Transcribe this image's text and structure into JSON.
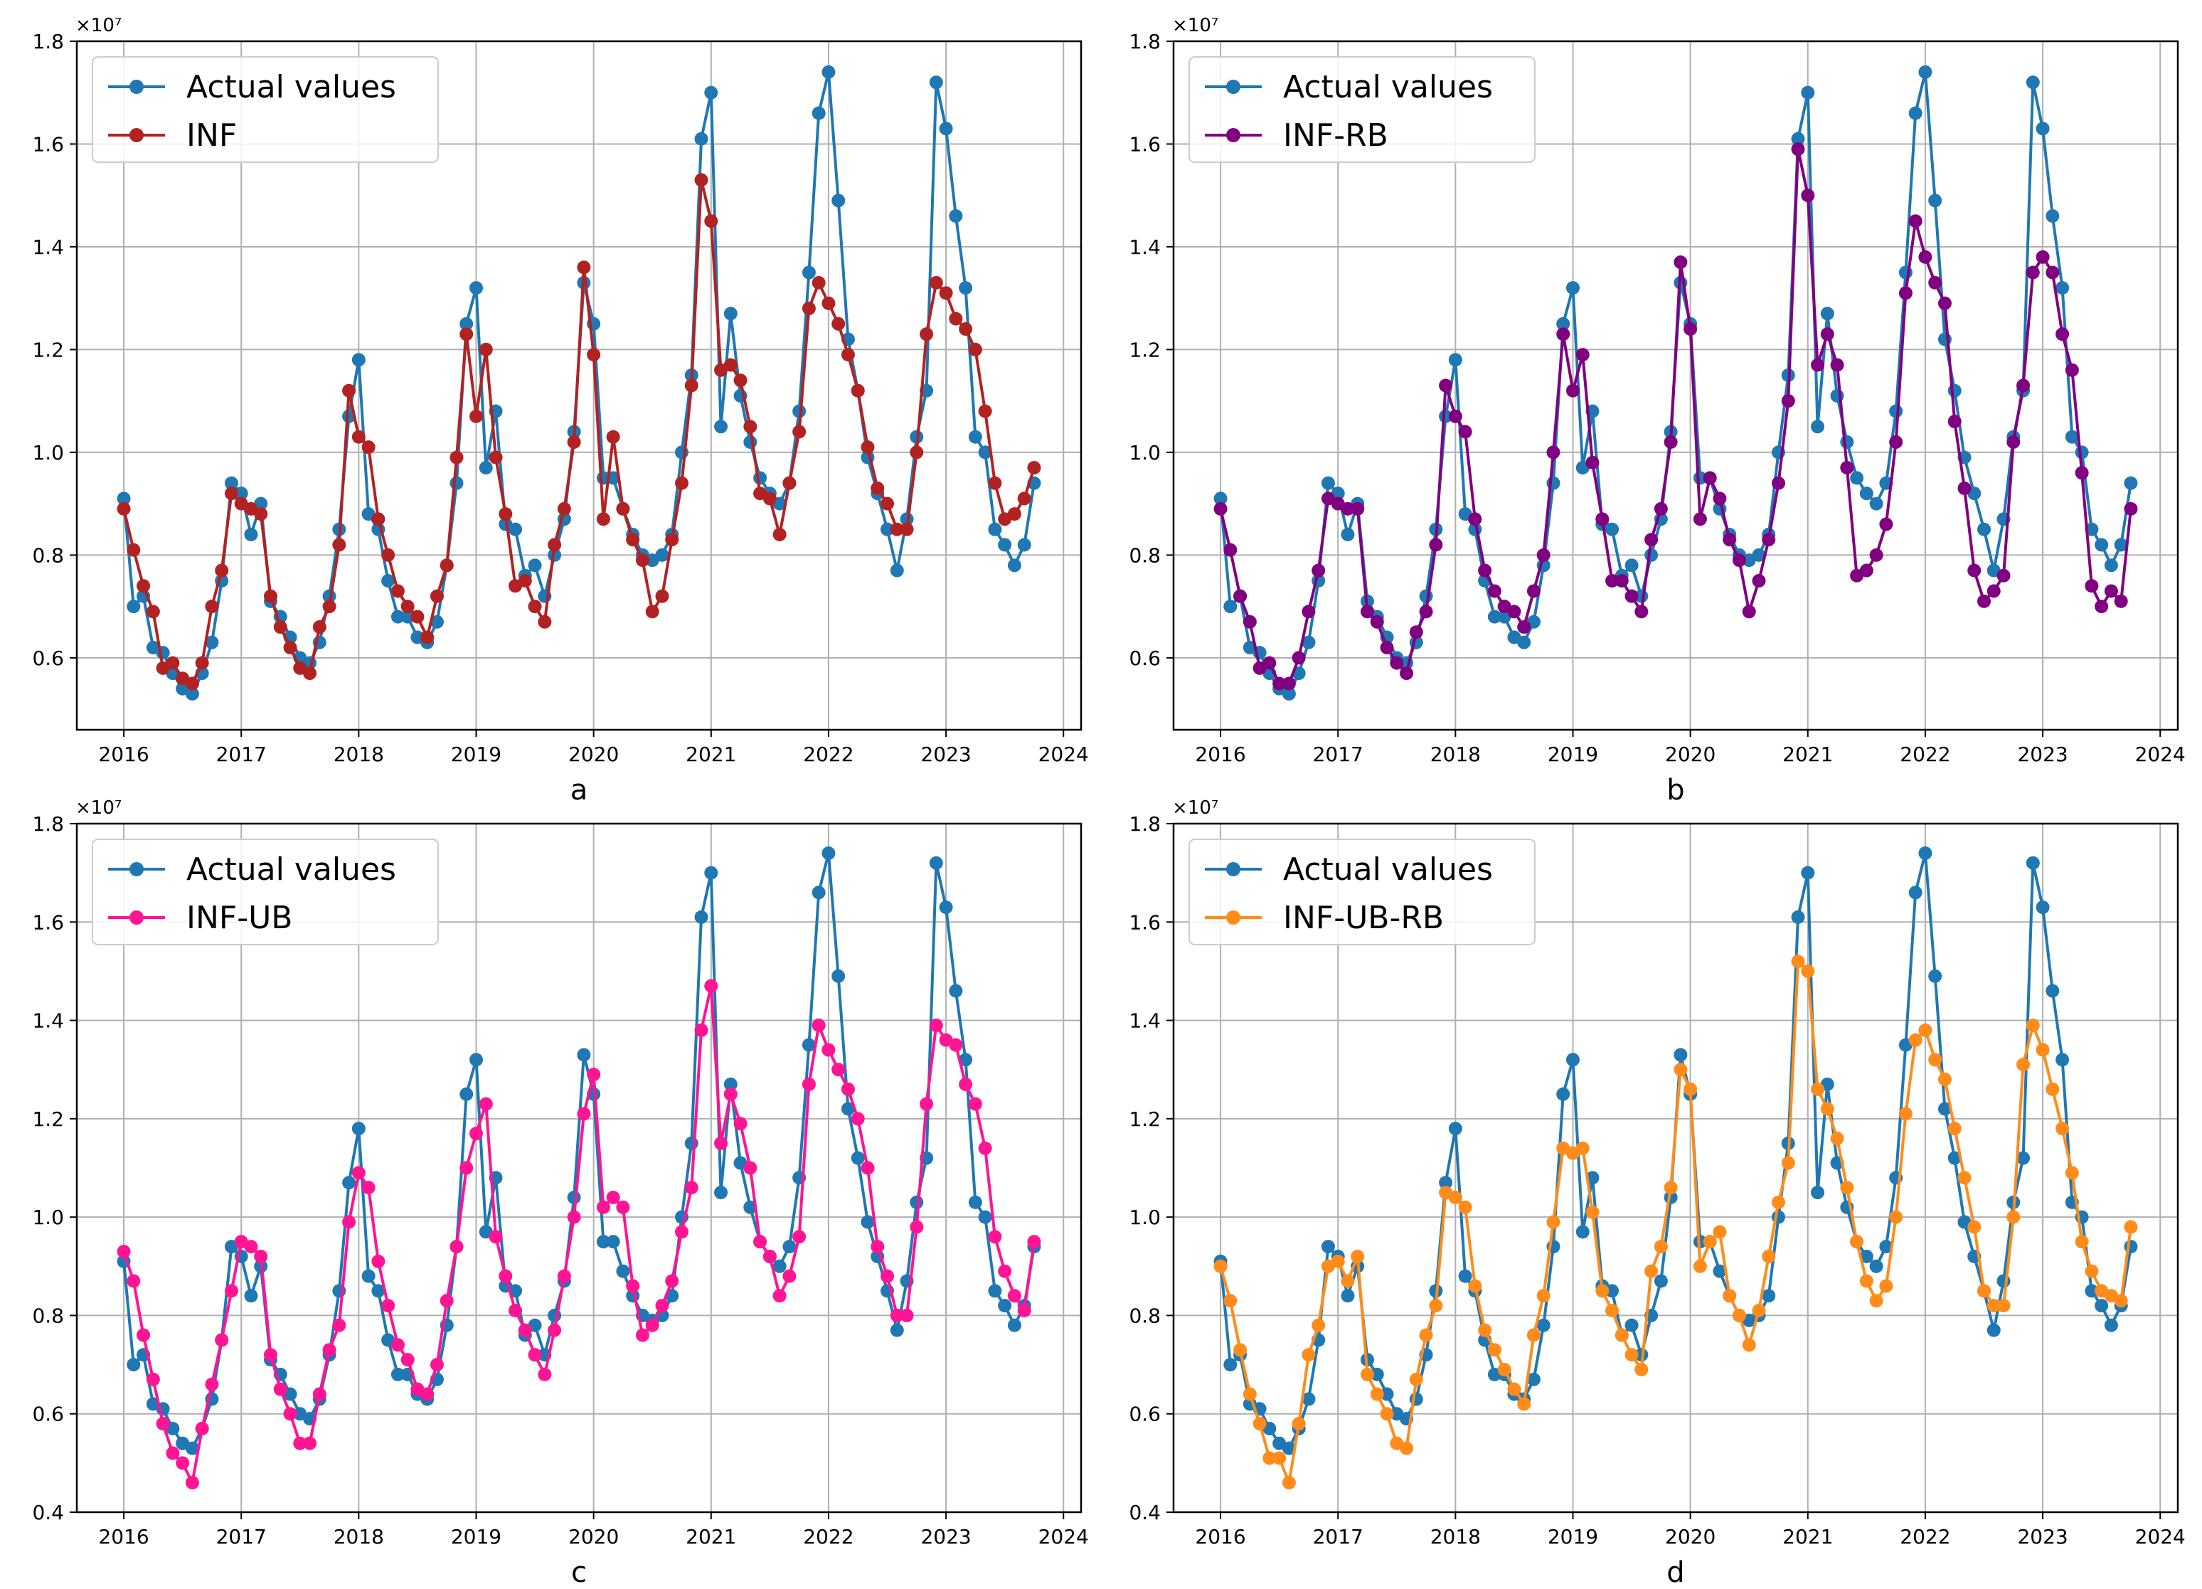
{
  "figure": {
    "panels": [
      "a",
      "b",
      "c",
      "d"
    ]
  },
  "colors": {
    "actual": "#1f77b4",
    "inf": "#b22222",
    "inf_rb": "#800080",
    "inf_ub": "#ff1493",
    "inf_ub_rb": "#ff8c1a",
    "grid": "#b0b0b0"
  },
  "chart_data": [
    {
      "type": "line",
      "panel_label": "a",
      "multiplier_label": "×10⁷",
      "ylim": [
        0.46,
        1.8
      ],
      "xlim": [
        2015.6,
        2024.15
      ],
      "xticks": [
        2016,
        2017,
        2018,
        2019,
        2020,
        2021,
        2022,
        2023,
        2024
      ],
      "yticks": [
        0.6,
        0.8,
        1.0,
        1.2,
        1.4,
        1.6,
        1.8
      ],
      "ytick_labels": [
        "0.6",
        "0.8",
        "1.0",
        "1.2",
        "1.4",
        "1.6",
        "1.8"
      ],
      "x_start": 2016,
      "x_step_months": 1,
      "grid": true,
      "legend": "top-left",
      "series": [
        {
          "name": "Actual values",
          "color": "#1f77b4",
          "values": [
            0.91,
            0.7,
            0.72,
            0.62,
            0.61,
            0.57,
            0.54,
            0.53,
            0.57,
            0.63,
            0.75,
            0.94,
            0.92,
            0.84,
            0.9,
            0.71,
            0.68,
            0.64,
            0.6,
            0.59,
            0.63,
            0.72,
            0.85,
            1.07,
            1.18,
            0.88,
            0.85,
            0.75,
            0.68,
            0.68,
            0.64,
            0.63,
            0.67,
            0.78,
            0.94,
            1.25,
            1.32,
            0.97,
            1.08,
            0.86,
            0.85,
            0.76,
            0.78,
            0.72,
            0.8,
            0.87,
            1.04,
            1.33,
            1.25,
            0.95,
            0.95,
            0.89,
            0.84,
            0.8,
            0.79,
            0.8,
            0.84,
            1.0,
            1.15,
            1.61,
            1.7,
            1.05,
            1.27,
            1.11,
            1.02,
            0.95,
            0.92,
            0.9,
            0.94,
            1.08,
            1.35,
            1.66,
            1.74,
            1.49,
            1.22,
            1.12,
            0.99,
            0.92,
            0.85,
            0.77,
            0.87,
            1.03,
            1.12,
            1.72,
            1.63,
            1.46,
            1.32,
            1.03,
            1.0,
            0.85,
            0.82,
            0.78,
            0.82,
            0.94
          ]
        },
        {
          "name": "INF",
          "color": "#b22222",
          "values": [
            0.89,
            0.81,
            0.74,
            0.69,
            0.58,
            0.59,
            0.56,
            0.55,
            0.59,
            0.7,
            0.77,
            0.92,
            0.9,
            0.89,
            0.88,
            0.72,
            0.66,
            0.62,
            0.58,
            0.57,
            0.66,
            0.7,
            0.82,
            1.12,
            1.03,
            1.01,
            0.87,
            0.8,
            0.73,
            0.7,
            0.68,
            0.64,
            0.72,
            0.78,
            0.99,
            1.23,
            1.07,
            1.2,
            0.99,
            0.88,
            0.74,
            0.75,
            0.7,
            0.67,
            0.82,
            0.89,
            1.02,
            1.36,
            1.19,
            0.87,
            1.03,
            0.89,
            0.83,
            0.79,
            0.69,
            0.72,
            0.83,
            0.94,
            1.13,
            1.53,
            1.45,
            1.16,
            1.17,
            1.14,
            1.05,
            0.92,
            0.91,
            0.84,
            0.94,
            1.04,
            1.28,
            1.33,
            1.29,
            1.25,
            1.19,
            1.12,
            1.01,
            0.93,
            0.9,
            0.85,
            0.85,
            1.0,
            1.23,
            1.33,
            1.31,
            1.26,
            1.24,
            1.2,
            1.08,
            0.94,
            0.87,
            0.88,
            0.91,
            0.97
          ]
        }
      ]
    },
    {
      "type": "line",
      "panel_label": "b",
      "multiplier_label": "×10⁷",
      "ylim": [
        0.46,
        1.8
      ],
      "xlim": [
        2015.6,
        2024.15
      ],
      "xticks": [
        2016,
        2017,
        2018,
        2019,
        2020,
        2021,
        2022,
        2023,
        2024
      ],
      "yticks": [
        0.6,
        0.8,
        1.0,
        1.2,
        1.4,
        1.6,
        1.8
      ],
      "ytick_labels": [
        "0.6",
        "0.8",
        "1.0",
        "1.2",
        "1.4",
        "1.6",
        "1.8"
      ],
      "x_start": 2016,
      "x_step_months": 1,
      "grid": true,
      "legend": "top-left",
      "series": [
        {
          "name": "Actual values",
          "color": "#1f77b4",
          "values": [
            0.91,
            0.7,
            0.72,
            0.62,
            0.61,
            0.57,
            0.54,
            0.53,
            0.57,
            0.63,
            0.75,
            0.94,
            0.92,
            0.84,
            0.9,
            0.71,
            0.68,
            0.64,
            0.6,
            0.59,
            0.63,
            0.72,
            0.85,
            1.07,
            1.18,
            0.88,
            0.85,
            0.75,
            0.68,
            0.68,
            0.64,
            0.63,
            0.67,
            0.78,
            0.94,
            1.25,
            1.32,
            0.97,
            1.08,
            0.86,
            0.85,
            0.76,
            0.78,
            0.72,
            0.8,
            0.87,
            1.04,
            1.33,
            1.25,
            0.95,
            0.95,
            0.89,
            0.84,
            0.8,
            0.79,
            0.8,
            0.84,
            1.0,
            1.15,
            1.61,
            1.7,
            1.05,
            1.27,
            1.11,
            1.02,
            0.95,
            0.92,
            0.9,
            0.94,
            1.08,
            1.35,
            1.66,
            1.74,
            1.49,
            1.22,
            1.12,
            0.99,
            0.92,
            0.85,
            0.77,
            0.87,
            1.03,
            1.12,
            1.72,
            1.63,
            1.46,
            1.32,
            1.03,
            1.0,
            0.85,
            0.82,
            0.78,
            0.82,
            0.94
          ]
        },
        {
          "name": "INF-RB",
          "color": "#800080",
          "values": [
            0.89,
            0.81,
            0.72,
            0.67,
            0.58,
            0.59,
            0.55,
            0.55,
            0.6,
            0.69,
            0.77,
            0.91,
            0.9,
            0.89,
            0.89,
            0.69,
            0.67,
            0.62,
            0.59,
            0.57,
            0.65,
            0.69,
            0.82,
            1.13,
            1.07,
            1.04,
            0.87,
            0.77,
            0.73,
            0.7,
            0.69,
            0.66,
            0.73,
            0.8,
            1.0,
            1.23,
            1.12,
            1.19,
            0.98,
            0.87,
            0.75,
            0.75,
            0.72,
            0.69,
            0.83,
            0.89,
            1.02,
            1.37,
            1.24,
            0.87,
            0.95,
            0.91,
            0.83,
            0.79,
            0.69,
            0.75,
            0.83,
            0.94,
            1.1,
            1.59,
            1.5,
            1.17,
            1.23,
            1.17,
            0.97,
            0.76,
            0.77,
            0.8,
            0.86,
            1.02,
            1.31,
            1.45,
            1.38,
            1.33,
            1.29,
            1.06,
            0.93,
            0.77,
            0.71,
            0.73,
            0.76,
            1.02,
            1.13,
            1.35,
            1.38,
            1.35,
            1.23,
            1.16,
            0.96,
            0.74,
            0.7,
            0.73,
            0.71,
            0.89
          ]
        }
      ]
    },
    {
      "type": "line",
      "panel_label": "c",
      "multiplier_label": "×10⁷",
      "ylim": [
        0.4,
        1.8
      ],
      "xlim": [
        2015.6,
        2024.15
      ],
      "xticks": [
        2016,
        2017,
        2018,
        2019,
        2020,
        2021,
        2022,
        2023,
        2024
      ],
      "yticks": [
        0.4,
        0.6,
        0.8,
        1.0,
        1.2,
        1.4,
        1.6,
        1.8
      ],
      "ytick_labels": [
        "0.4",
        "0.6",
        "0.8",
        "1.0",
        "1.2",
        "1.4",
        "1.6",
        "1.8"
      ],
      "x_start": 2016,
      "x_step_months": 1,
      "grid": true,
      "legend": "top-left",
      "series": [
        {
          "name": "Actual values",
          "color": "#1f77b4",
          "values": [
            0.91,
            0.7,
            0.72,
            0.62,
            0.61,
            0.57,
            0.54,
            0.53,
            0.57,
            0.63,
            0.75,
            0.94,
            0.92,
            0.84,
            0.9,
            0.71,
            0.68,
            0.64,
            0.6,
            0.59,
            0.63,
            0.72,
            0.85,
            1.07,
            1.18,
            0.88,
            0.85,
            0.75,
            0.68,
            0.68,
            0.64,
            0.63,
            0.67,
            0.78,
            0.94,
            1.25,
            1.32,
            0.97,
            1.08,
            0.86,
            0.85,
            0.76,
            0.78,
            0.72,
            0.8,
            0.87,
            1.04,
            1.33,
            1.25,
            0.95,
            0.95,
            0.89,
            0.84,
            0.8,
            0.79,
            0.8,
            0.84,
            1.0,
            1.15,
            1.61,
            1.7,
            1.05,
            1.27,
            1.11,
            1.02,
            0.95,
            0.92,
            0.9,
            0.94,
            1.08,
            1.35,
            1.66,
            1.74,
            1.49,
            1.22,
            1.12,
            0.99,
            0.92,
            0.85,
            0.77,
            0.87,
            1.03,
            1.12,
            1.72,
            1.63,
            1.46,
            1.32,
            1.03,
            1.0,
            0.85,
            0.82,
            0.78,
            0.82,
            0.94
          ]
        },
        {
          "name": "INF-UB",
          "color": "#ff1493",
          "values": [
            0.93,
            0.87,
            0.76,
            0.67,
            0.58,
            0.52,
            0.5,
            0.46,
            0.57,
            0.66,
            0.75,
            0.85,
            0.95,
            0.94,
            0.92,
            0.72,
            0.65,
            0.6,
            0.54,
            0.54,
            0.64,
            0.73,
            0.78,
            0.99,
            1.09,
            1.06,
            0.91,
            0.82,
            0.74,
            0.71,
            0.65,
            0.64,
            0.7,
            0.83,
            0.94,
            1.1,
            1.17,
            1.23,
            0.96,
            0.88,
            0.81,
            0.77,
            0.72,
            0.68,
            0.77,
            0.88,
            1.0,
            1.21,
            1.29,
            1.02,
            1.04,
            1.02,
            0.86,
            0.76,
            0.78,
            0.82,
            0.87,
            0.97,
            1.06,
            1.38,
            1.47,
            1.15,
            1.25,
            1.19,
            1.1,
            0.95,
            0.92,
            0.84,
            0.88,
            0.96,
            1.27,
            1.39,
            1.34,
            1.3,
            1.26,
            1.2,
            1.1,
            0.94,
            0.88,
            0.8,
            0.8,
            0.98,
            1.23,
            1.39,
            1.36,
            1.35,
            1.27,
            1.23,
            1.14,
            0.96,
            0.89,
            0.84,
            0.81,
            0.95
          ]
        }
      ]
    },
    {
      "type": "line",
      "panel_label": "d",
      "multiplier_label": "×10⁷",
      "ylim": [
        0.4,
        1.8
      ],
      "xlim": [
        2015.6,
        2024.15
      ],
      "xticks": [
        2016,
        2017,
        2018,
        2019,
        2020,
        2021,
        2022,
        2023,
        2024
      ],
      "yticks": [
        0.4,
        0.6,
        0.8,
        1.0,
        1.2,
        1.4,
        1.6,
        1.8
      ],
      "ytick_labels": [
        "0.4",
        "0.6",
        "0.8",
        "1.0",
        "1.2",
        "1.4",
        "1.6",
        "1.8"
      ],
      "x_start": 2016,
      "x_step_months": 1,
      "grid": true,
      "legend": "top-left",
      "series": [
        {
          "name": "Actual values",
          "color": "#1f77b4",
          "values": [
            0.91,
            0.7,
            0.72,
            0.62,
            0.61,
            0.57,
            0.54,
            0.53,
            0.57,
            0.63,
            0.75,
            0.94,
            0.92,
            0.84,
            0.9,
            0.71,
            0.68,
            0.64,
            0.6,
            0.59,
            0.63,
            0.72,
            0.85,
            1.07,
            1.18,
            0.88,
            0.85,
            0.75,
            0.68,
            0.68,
            0.64,
            0.63,
            0.67,
            0.78,
            0.94,
            1.25,
            1.32,
            0.97,
            1.08,
            0.86,
            0.85,
            0.76,
            0.78,
            0.72,
            0.8,
            0.87,
            1.04,
            1.33,
            1.25,
            0.95,
            0.95,
            0.89,
            0.84,
            0.8,
            0.79,
            0.8,
            0.84,
            1.0,
            1.15,
            1.61,
            1.7,
            1.05,
            1.27,
            1.11,
            1.02,
            0.95,
            0.92,
            0.9,
            0.94,
            1.08,
            1.35,
            1.66,
            1.74,
            1.49,
            1.22,
            1.12,
            0.99,
            0.92,
            0.85,
            0.77,
            0.87,
            1.03,
            1.12,
            1.72,
            1.63,
            1.46,
            1.32,
            1.03,
            1.0,
            0.85,
            0.82,
            0.78,
            0.82,
            0.94
          ]
        },
        {
          "name": "INF-UB-RB",
          "color": "#ff8c1a",
          "values": [
            0.9,
            0.83,
            0.73,
            0.64,
            0.58,
            0.51,
            0.51,
            0.46,
            0.58,
            0.72,
            0.78,
            0.9,
            0.91,
            0.87,
            0.92,
            0.68,
            0.64,
            0.6,
            0.54,
            0.53,
            0.67,
            0.76,
            0.82,
            1.05,
            1.04,
            1.02,
            0.86,
            0.77,
            0.73,
            0.69,
            0.65,
            0.62,
            0.76,
            0.84,
            0.99,
            1.14,
            1.13,
            1.14,
            1.01,
            0.85,
            0.81,
            0.76,
            0.72,
            0.69,
            0.89,
            0.94,
            1.06,
            1.3,
            1.26,
            0.9,
            0.95,
            0.97,
            0.84,
            0.8,
            0.74,
            0.81,
            0.92,
            1.03,
            1.11,
            1.52,
            1.5,
            1.26,
            1.22,
            1.16,
            1.06,
            0.95,
            0.87,
            0.83,
            0.86,
            1.0,
            1.21,
            1.36,
            1.38,
            1.32,
            1.28,
            1.18,
            1.08,
            0.98,
            0.85,
            0.82,
            0.82,
            1.0,
            1.31,
            1.39,
            1.34,
            1.26,
            1.18,
            1.09,
            0.95,
            0.89,
            0.85,
            0.84,
            0.83,
            0.98
          ]
        }
      ]
    }
  ]
}
